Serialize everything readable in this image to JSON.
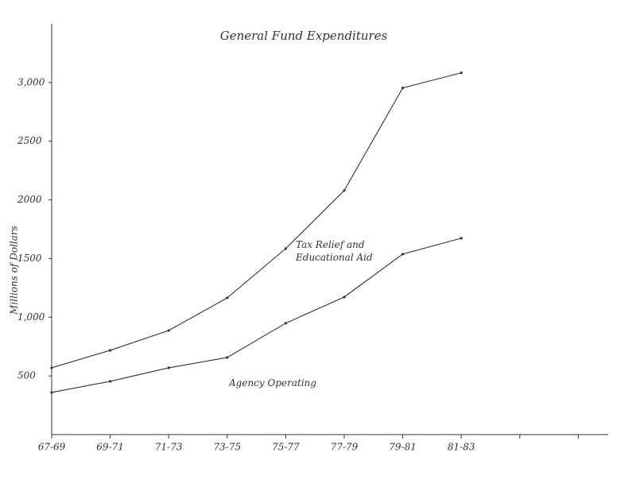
{
  "chart_data": {
    "type": "line",
    "title": "General Fund Expenditures",
    "y_label": "Millions of Dollars",
    "categories": [
      "67-69",
      "69-71",
      "71-73",
      "73-75",
      "75-77",
      "77-79",
      "79-81",
      "81-83",
      null,
      null
    ],
    "series": [
      {
        "name": "Tax Relief and Educational Aid",
        "color": "#333333",
        "values": [
          569,
          718,
          887,
          1165,
          1585,
          2080,
          2954,
          3083,
          null,
          null
        ]
      },
      {
        "name": "Agency Operating",
        "color": "#333333",
        "values": [
          359,
          454,
          569,
          657,
          949,
          1172,
          1538,
          1673,
          null,
          null
        ]
      }
    ],
    "ylim": [
      0,
      3500
    ],
    "yticks": [
      500,
      {
        "value": 1000,
        "label": "1,000"
      },
      1500,
      2000,
      2500,
      {
        "value": 3000,
        "label": "3,000"
      }
    ],
    "grid": false
  }
}
